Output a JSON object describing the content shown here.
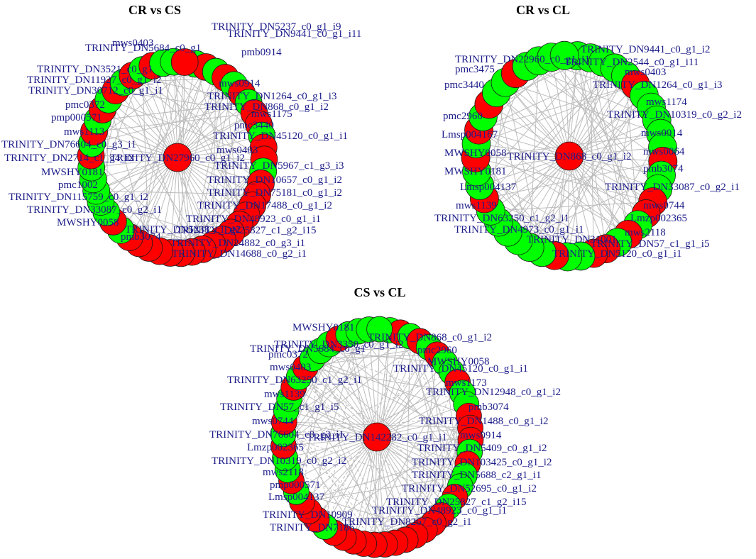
{
  "colors": {
    "up": "#ff0000",
    "down": "#00ff00",
    "node_border": "#1a1a1a",
    "edge": "#bdbdbd",
    "label": "#1c1c8a"
  },
  "panels": [
    {
      "title": "CR vs CS",
      "hub": {
        "label": "TRINITY_DN27960_c0_g1_i2",
        "color": "up"
      },
      "ring_colors": [
        "down",
        "up",
        "down",
        "up",
        "down",
        "up",
        "down",
        "up",
        "up",
        "down",
        "up",
        "up",
        "down",
        "up",
        "up",
        "up",
        "up",
        "up",
        "up",
        "up",
        "up",
        "up",
        "up",
        "up",
        "up",
        "up",
        "up",
        "up",
        "up",
        "down",
        "up",
        "down",
        "down",
        "down",
        "down",
        "down",
        "up",
        "down",
        "up",
        "down",
        "up",
        "down",
        "up",
        "down",
        "up",
        "down",
        "up",
        "down",
        "down",
        "up"
      ],
      "labels": [
        "TRINITY_DN45120_c0_g1_i1",
        "mws0403",
        "TRINITY_DN5967_c1_g3_i3",
        "TRINITY_DN10657_c0_g1_i2",
        "TRINITY_DN75181_c0_g1_i2",
        "TRINITY_DN17488_c0_g1_i2",
        "TRINITY_DN48923_c0_g1_i1",
        "TRINITY_DN25827_c1_g2_i15",
        "TRINITY_DN24882_c0_g3_i1",
        "TRINITY_DN14688_c0_g2_i1",
        "pmb3074",
        "TRINITY_DN5238_c1_g2",
        "MWSHY0058",
        "TRINITY_DN33087_c0_g2_i1",
        "TRINITY_DN115759_c0_g1_i2",
        "pmc1002",
        "MWSHY0181",
        "TRINITY_DN2714_c1_g4_i2",
        "TRINITY_DN76604_c0_g3_i1",
        "mws1113",
        "pmp000571",
        "pmc0372",
        "TRINITY_DN30712_c0_g1_i1",
        "TRINITY_DN11927_c0_g1_i2",
        "TRINITY_DN3521_c0_g1",
        "TRINITY_DN5684_c0_g1",
        "mws0403",
        "pmb0914",
        "TRINITY_DN9441_c0_g1_i11",
        "TRINITY_DN5237_c0_g1_i9",
        "TRINITY_DN1264_c0_g1_i3",
        "mws0914",
        "TRINITY_DN868_c0_g1_i2",
        "mws1175",
        "pmc3440"
      ]
    },
    {
      "title": "CR vs CL",
      "hub": {
        "label": "TRINITY_DN868_c0_g1_i2",
        "color": "up"
      },
      "ring_colors": [
        "down",
        "down",
        "down",
        "down",
        "down",
        "up",
        "down",
        "down",
        "down",
        "down",
        "down",
        "up",
        "down",
        "down",
        "up",
        "up",
        "down",
        "up",
        "down",
        "up",
        "up",
        "down",
        "down",
        "up",
        "down",
        "down",
        "down",
        "down",
        "down",
        "down",
        "up",
        "down",
        "down",
        "up",
        "down",
        "up",
        "down",
        "up",
        "down",
        "down",
        "up",
        "down",
        "down",
        "down",
        "down"
      ],
      "labels": [
        "TRINITY_DN10319_c0_g2_i2",
        "mws0914",
        "mws0064",
        "pmb3074",
        "TRINITY_DN33087_c0_g2_i1",
        "mws0744",
        "Lmzp002365",
        "mws2118",
        "TRINITY_DN57_c1_g1_i5",
        "TRINITY_DN5120_c0_g1_i1",
        "TRINITY_DN31001",
        "TRINITY_DN4973_c0_g1_i1",
        "TRINITY_DN63250_c1_g2_i1",
        "mws1139",
        "Lmsp004137",
        "MWSHY0181",
        "MWSHY0058",
        "Lmsp004167",
        "pmc2960",
        "pmc3440",
        "pmc3475",
        "TRINITY_DN22960_c0_g1_i1",
        "TRINITY_DN9441_c0_g1_i2",
        "TRINITY_DN2544_c0_g1_i11",
        "mws0403",
        "TRINITY_DN1264_c0_g1_i3",
        "mws1174"
      ]
    },
    {
      "title": "CS vs CL",
      "hub": {
        "label": "TRINITY_DN142282_c0_g1_i1",
        "color": "up"
      },
      "ring_colors": [
        "down",
        "up",
        "down",
        "up",
        "down",
        "up",
        "down",
        "down",
        "up",
        "down",
        "down",
        "up",
        "up",
        "up",
        "down",
        "up",
        "down",
        "down",
        "up",
        "down",
        "up",
        "up",
        "up",
        "up",
        "up",
        "up",
        "up",
        "up",
        "up",
        "up",
        "up",
        "up",
        "down",
        "up",
        "up",
        "up",
        "down",
        "up",
        "down",
        "down",
        "up",
        "down",
        "up",
        "down",
        "down",
        "up",
        "down",
        "up",
        "down",
        "down",
        "down",
        "up",
        "down",
        "down",
        "down",
        "down"
      ],
      "labels": [
        "TRINITY_DN868_c0_g1_i2",
        "pmc2960",
        "MWSHY0058",
        "TRINITY_DN45120_c0_g1_i1",
        "mws1173",
        "TRINITY_DN12948_c0_g1_i2",
        "pmb3074",
        "TRINITY_DN1488_c0_g1_i2",
        "mws0914",
        "TRINITY_DN5409_c0_g1_i2",
        "TRINITY_DN103425_c0_g1_i2",
        "TRINITY_DN5688_c2_g1_i1",
        "TRINITY_DN52695_c0_g1_i2",
        "TRINITY_DN25827_c1_g2_i15",
        "TRINITY_DN48923_c0_g1_i1",
        "TRINITY_DN8267_c0_g2_i1",
        "TRINITY_DN10909",
        "TRINITY_DN7186",
        "Lmsp004137",
        "pmp000571",
        "mws2118",
        "TRINITY_DN10319_c0_g2_i2",
        "Lmzp002365",
        "TRINITY_DN76604_c0_g3_i1",
        "mws0744",
        "TRINITY_DN57_c1_g1_i5",
        "mws1139",
        "TRINITY_DN63250_c1_g2_i1",
        "mws0403",
        "pmc0372",
        "TRINITY_DN3350_c0_g1_i2",
        "TRINITY_DN5684_c0_g1",
        "MWSHY0181"
      ]
    }
  ]
}
